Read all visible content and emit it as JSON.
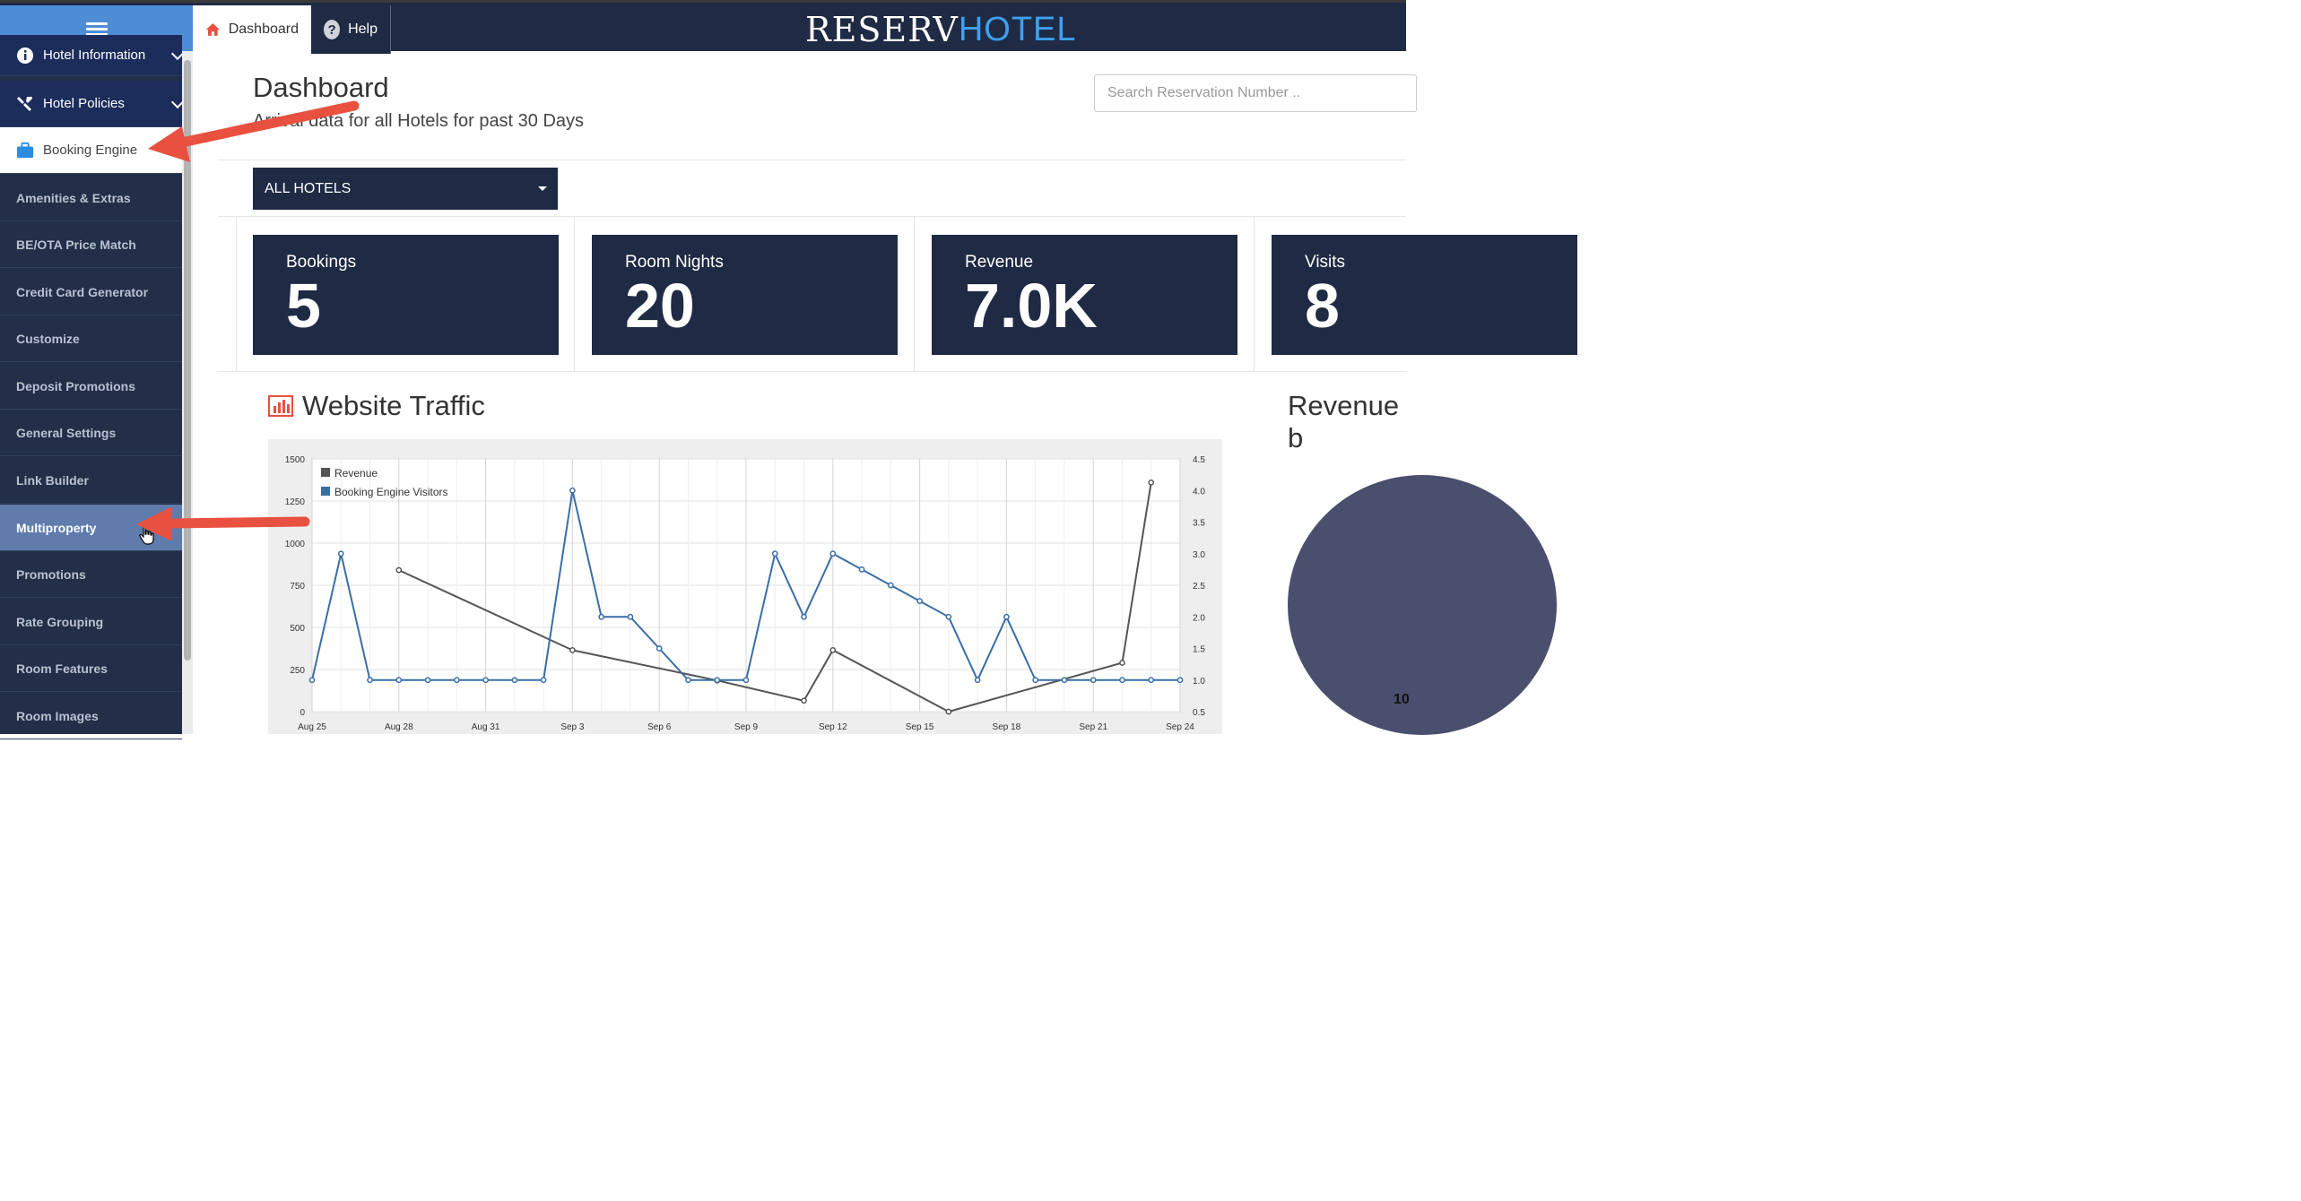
{
  "topbar": {
    "tabs": [
      {
        "label": "Dashboard",
        "icon": "home-icon",
        "active": true
      },
      {
        "label": "Help",
        "icon": "question-icon",
        "active": false
      }
    ],
    "logo": {
      "part1": "RESERV",
      "part2": "HOTEL"
    }
  },
  "sidebar": {
    "items": [
      {
        "label": "Hotel Information",
        "icon": "info-icon",
        "style": "top"
      },
      {
        "label": "Hotel Policies",
        "icon": "tools-icon",
        "style": "top"
      },
      {
        "label": "Booking Engine",
        "icon": "briefcase-icon",
        "style": "active"
      },
      {
        "label": "Amenities & Extras",
        "style": "sub"
      },
      {
        "label": "BE/OTA Price Match",
        "style": "sub"
      },
      {
        "label": "Credit Card Generator",
        "style": "sub"
      },
      {
        "label": "Customize",
        "style": "sub"
      },
      {
        "label": "Deposit Promotions",
        "style": "sub"
      },
      {
        "label": "General Settings",
        "style": "sub"
      },
      {
        "label": "Link Builder",
        "style": "sub"
      },
      {
        "label": "Multiproperty",
        "style": "hover"
      },
      {
        "label": "Promotions",
        "style": "sub"
      },
      {
        "label": "Rate Grouping",
        "style": "sub"
      },
      {
        "label": "Room Features",
        "style": "sub"
      },
      {
        "label": "Room Images",
        "style": "sub"
      }
    ]
  },
  "main": {
    "title": "Dashboard",
    "subtitle": "Arrival data for all Hotels for past 30 Days",
    "search": {
      "placeholder": "Search Reservation Number .."
    },
    "hotel_select": {
      "value": "ALL HOTELS"
    },
    "stats": [
      {
        "label": "Bookings",
        "value": "5"
      },
      {
        "label": "Room Nights",
        "value": "20"
      },
      {
        "label": "Revenue",
        "value": "7.0K"
      },
      {
        "label": "Visits",
        "value": "8"
      }
    ],
    "traffic_title": "Website Traffic",
    "revenue_title": "Revenue b",
    "pie_label": "10"
  },
  "colors": {
    "navy": "#1f2a44",
    "accent_blue": "#4d8dd6",
    "visitors_line": "#3a6ea5",
    "revenue_line": "#555555",
    "arrow": "#e8513f"
  },
  "chart_data": {
    "type": "line",
    "x": [
      "Aug 25",
      "Aug 26",
      "Aug 27",
      "Aug 28",
      "Aug 29",
      "Aug 30",
      "Aug 31",
      "Sep 1",
      "Sep 2",
      "Sep 3",
      "Sep 4",
      "Sep 5",
      "Sep 6",
      "Sep 7",
      "Sep 8",
      "Sep 9",
      "Sep 10",
      "Sep 11",
      "Sep 12",
      "Sep 13",
      "Sep 14",
      "Sep 15",
      "Sep 16",
      "Sep 17",
      "Sep 18",
      "Sep 19",
      "Sep 20",
      "Sep 21",
      "Sep 22",
      "Sep 23",
      "Sep 24"
    ],
    "x_tick_labels": [
      "Aug 25",
      "Aug 28",
      "Aug 31",
      "Sep 3",
      "Sep 6",
      "Sep 9",
      "Sep 12",
      "Sep 15",
      "Sep 18",
      "Sep 21",
      "Sep 24"
    ],
    "y_left_ticks": [
      "0",
      "250",
      "500",
      "750",
      "1000",
      "1250",
      "1500"
    ],
    "y_right_ticks": [
      "0.5",
      "1.0",
      "1.5",
      "2.0",
      "2.5",
      "3.0",
      "3.5",
      "4.0",
      "4.5"
    ],
    "ylim_left": [
      0,
      1500
    ],
    "ylim_right": [
      0.5,
      4.5
    ],
    "legend_position": "top-left",
    "grid": true,
    "series": [
      {
        "name": "Revenue",
        "axis": "left",
        "color": "#555555",
        "points": [
          [
            4,
            840
          ],
          [
            10,
            365
          ],
          [
            15,
            185
          ],
          [
            18,
            65
          ],
          [
            19,
            365
          ],
          [
            23,
            0
          ],
          [
            29,
            290
          ],
          [
            30,
            1360
          ]
        ]
      },
      {
        "name": "Booking Engine Visitors",
        "axis": "right",
        "color": "#3a6ea5",
        "points": [
          [
            1,
            1.0
          ],
          [
            2,
            3.0
          ],
          [
            3,
            1.0
          ],
          [
            4,
            1.0
          ],
          [
            5,
            1.0
          ],
          [
            6,
            1.0
          ],
          [
            7,
            1.0
          ],
          [
            8,
            1.0
          ],
          [
            9,
            1.0
          ],
          [
            10,
            4.0
          ],
          [
            11,
            2.0
          ],
          [
            12,
            2.0
          ],
          [
            13,
            1.5
          ],
          [
            14,
            1.0
          ],
          [
            15,
            1.0
          ],
          [
            16,
            1.0
          ],
          [
            17,
            3.0
          ],
          [
            18,
            2.0
          ],
          [
            19,
            3.0
          ],
          [
            20,
            2.75
          ],
          [
            21,
            2.5
          ],
          [
            22,
            2.25
          ],
          [
            23,
            2.0
          ],
          [
            24,
            1.0
          ],
          [
            25,
            2.0
          ],
          [
            26,
            1.0
          ],
          [
            27,
            1.0
          ],
          [
            28,
            1.0
          ],
          [
            29,
            1.0
          ],
          [
            30,
            1.0
          ],
          [
            31,
            1.0
          ]
        ]
      }
    ]
  }
}
